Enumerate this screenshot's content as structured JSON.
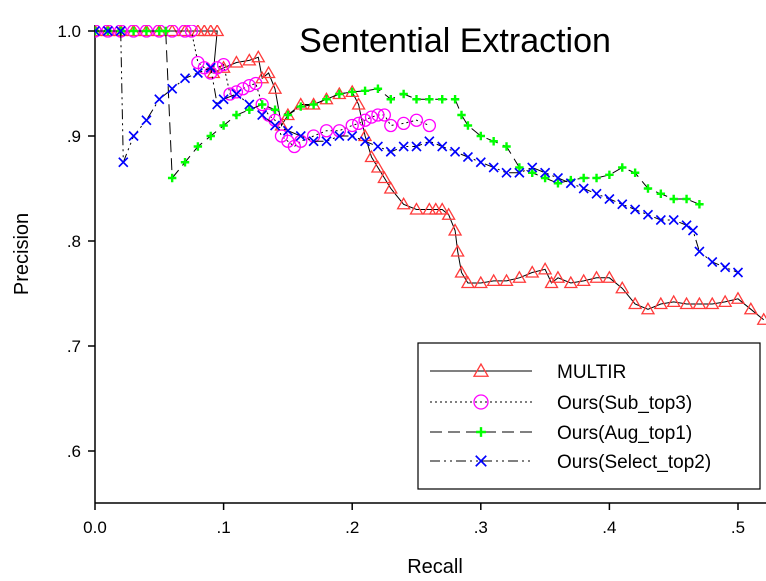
{
  "chart_data": {
    "type": "line",
    "title": "Sentential Extraction",
    "xlabel": "Recall",
    "ylabel": "Precision",
    "xlim": [
      0,
      0.52
    ],
    "ylim": [
      0.55,
      1.0
    ],
    "xticks": [
      0,
      0.1,
      0.2,
      0.3,
      0.4,
      0.5
    ],
    "xtick_labels": [
      "0.0",
      ".1",
      ".2",
      ".3",
      ".4",
      ".5"
    ],
    "yticks": [
      0.6,
      0.7,
      0.8,
      0.9,
      1.0
    ],
    "ytick_labels": [
      ".6",
      ".7",
      ".8",
      ".9",
      "1.0"
    ],
    "grid": false,
    "legend_position": "bottom-right",
    "series": [
      {
        "name": "MULTIR",
        "color": "#ff3b3b",
        "line_style": "solid",
        "marker": "triangle",
        "x": [
          0.0,
          0.01,
          0.02,
          0.03,
          0.04,
          0.05,
          0.06,
          0.07,
          0.08,
          0.085,
          0.09,
          0.095,
          0.092,
          0.1,
          0.11,
          0.12,
          0.127,
          0.13,
          0.135,
          0.14,
          0.145,
          0.15,
          0.16,
          0.17,
          0.18,
          0.19,
          0.2,
          0.205,
          0.21,
          0.215,
          0.22,
          0.225,
          0.23,
          0.24,
          0.25,
          0.26,
          0.265,
          0.27,
          0.275,
          0.28,
          0.282,
          0.285,
          0.29,
          0.3,
          0.31,
          0.32,
          0.33,
          0.34,
          0.35,
          0.355,
          0.36,
          0.37,
          0.38,
          0.39,
          0.4,
          0.41,
          0.42,
          0.43,
          0.44,
          0.45,
          0.46,
          0.47,
          0.48,
          0.49,
          0.5,
          0.51,
          0.52
        ],
        "y": [
          1.0,
          1.0,
          1.0,
          1.0,
          1.0,
          1.0,
          1.0,
          1.0,
          1.0,
          1.0,
          1.0,
          1.0,
          0.96,
          0.965,
          0.97,
          0.972,
          0.975,
          0.955,
          0.96,
          0.945,
          0.91,
          0.92,
          0.93,
          0.93,
          0.935,
          0.94,
          0.942,
          0.93,
          0.9,
          0.88,
          0.87,
          0.86,
          0.85,
          0.835,
          0.83,
          0.83,
          0.83,
          0.83,
          0.825,
          0.81,
          0.79,
          0.77,
          0.76,
          0.76,
          0.762,
          0.762,
          0.765,
          0.77,
          0.773,
          0.76,
          0.765,
          0.76,
          0.762,
          0.765,
          0.765,
          0.755,
          0.74,
          0.735,
          0.74,
          0.742,
          0.74,
          0.74,
          0.74,
          0.742,
          0.745,
          0.735,
          0.725
        ]
      },
      {
        "name": "Ours(Sub_top3)",
        "color": "#ff00ff",
        "line_style": "dotted",
        "marker": "circle",
        "x": [
          0.0,
          0.01,
          0.02,
          0.03,
          0.04,
          0.05,
          0.06,
          0.07,
          0.075,
          0.08,
          0.085,
          0.09,
          0.095,
          0.1,
          0.105,
          0.11,
          0.115,
          0.12,
          0.125,
          0.13,
          0.135,
          0.14,
          0.145,
          0.15,
          0.155,
          0.16,
          0.17,
          0.18,
          0.19,
          0.2,
          0.205,
          0.21,
          0.215,
          0.22,
          0.225,
          0.23,
          0.24,
          0.25,
          0.26
        ],
        "y": [
          1.0,
          1.0,
          1.0,
          1.0,
          1.0,
          1.0,
          1.0,
          1.0,
          1.0,
          0.97,
          0.965,
          0.96,
          0.965,
          0.968,
          0.94,
          0.942,
          0.945,
          0.948,
          0.95,
          0.93,
          0.92,
          0.915,
          0.9,
          0.895,
          0.89,
          0.895,
          0.9,
          0.905,
          0.905,
          0.91,
          0.912,
          0.915,
          0.918,
          0.92,
          0.92,
          0.91,
          0.912,
          0.915,
          0.91
        ]
      },
      {
        "name": "Ours(Aug_top1)",
        "color": "#00ff00",
        "line_style": "dashed",
        "marker": "plus",
        "x": [
          0.0,
          0.01,
          0.02,
          0.03,
          0.04,
          0.05,
          0.055,
          0.06,
          0.07,
          0.08,
          0.09,
          0.1,
          0.11,
          0.12,
          0.13,
          0.14,
          0.15,
          0.16,
          0.17,
          0.18,
          0.19,
          0.2,
          0.21,
          0.22,
          0.23,
          0.24,
          0.25,
          0.26,
          0.27,
          0.28,
          0.285,
          0.29,
          0.3,
          0.31,
          0.32,
          0.33,
          0.34,
          0.35,
          0.36,
          0.37,
          0.38,
          0.39,
          0.4,
          0.41,
          0.42,
          0.43,
          0.44,
          0.45,
          0.46,
          0.47
        ],
        "y": [
          1.0,
          1.0,
          1.0,
          1.0,
          1.0,
          1.0,
          1.0,
          0.86,
          0.875,
          0.89,
          0.9,
          0.91,
          0.92,
          0.925,
          0.93,
          0.925,
          0.92,
          0.928,
          0.93,
          0.935,
          0.94,
          0.942,
          0.943,
          0.945,
          0.935,
          0.94,
          0.935,
          0.935,
          0.935,
          0.935,
          0.92,
          0.91,
          0.9,
          0.895,
          0.89,
          0.87,
          0.865,
          0.86,
          0.855,
          0.858,
          0.86,
          0.86,
          0.863,
          0.87,
          0.865,
          0.85,
          0.845,
          0.84,
          0.84,
          0.835
        ]
      },
      {
        "name": "Ours(Select_top2)",
        "color": "#0000ff",
        "line_style": "dash-dot-dot",
        "marker": "x",
        "x": [
          0.0,
          0.01,
          0.02,
          0.022,
          0.03,
          0.04,
          0.05,
          0.06,
          0.07,
          0.08,
          0.09,
          0.095,
          0.1,
          0.11,
          0.12,
          0.13,
          0.14,
          0.15,
          0.16,
          0.17,
          0.18,
          0.19,
          0.2,
          0.21,
          0.22,
          0.23,
          0.24,
          0.25,
          0.26,
          0.27,
          0.28,
          0.29,
          0.3,
          0.31,
          0.32,
          0.33,
          0.34,
          0.35,
          0.36,
          0.37,
          0.38,
          0.39,
          0.4,
          0.41,
          0.42,
          0.43,
          0.44,
          0.45,
          0.46,
          0.465,
          0.47,
          0.48,
          0.49,
          0.5
        ],
        "y": [
          1.0,
          1.0,
          1.0,
          0.875,
          0.9,
          0.915,
          0.935,
          0.945,
          0.955,
          0.96,
          0.965,
          0.93,
          0.935,
          0.94,
          0.93,
          0.92,
          0.91,
          0.905,
          0.9,
          0.895,
          0.895,
          0.9,
          0.9,
          0.895,
          0.89,
          0.885,
          0.89,
          0.89,
          0.895,
          0.89,
          0.885,
          0.88,
          0.875,
          0.87,
          0.865,
          0.865,
          0.87,
          0.865,
          0.86,
          0.855,
          0.85,
          0.845,
          0.84,
          0.835,
          0.83,
          0.825,
          0.82,
          0.82,
          0.815,
          0.81,
          0.79,
          0.78,
          0.775,
          0.77
        ]
      }
    ]
  }
}
